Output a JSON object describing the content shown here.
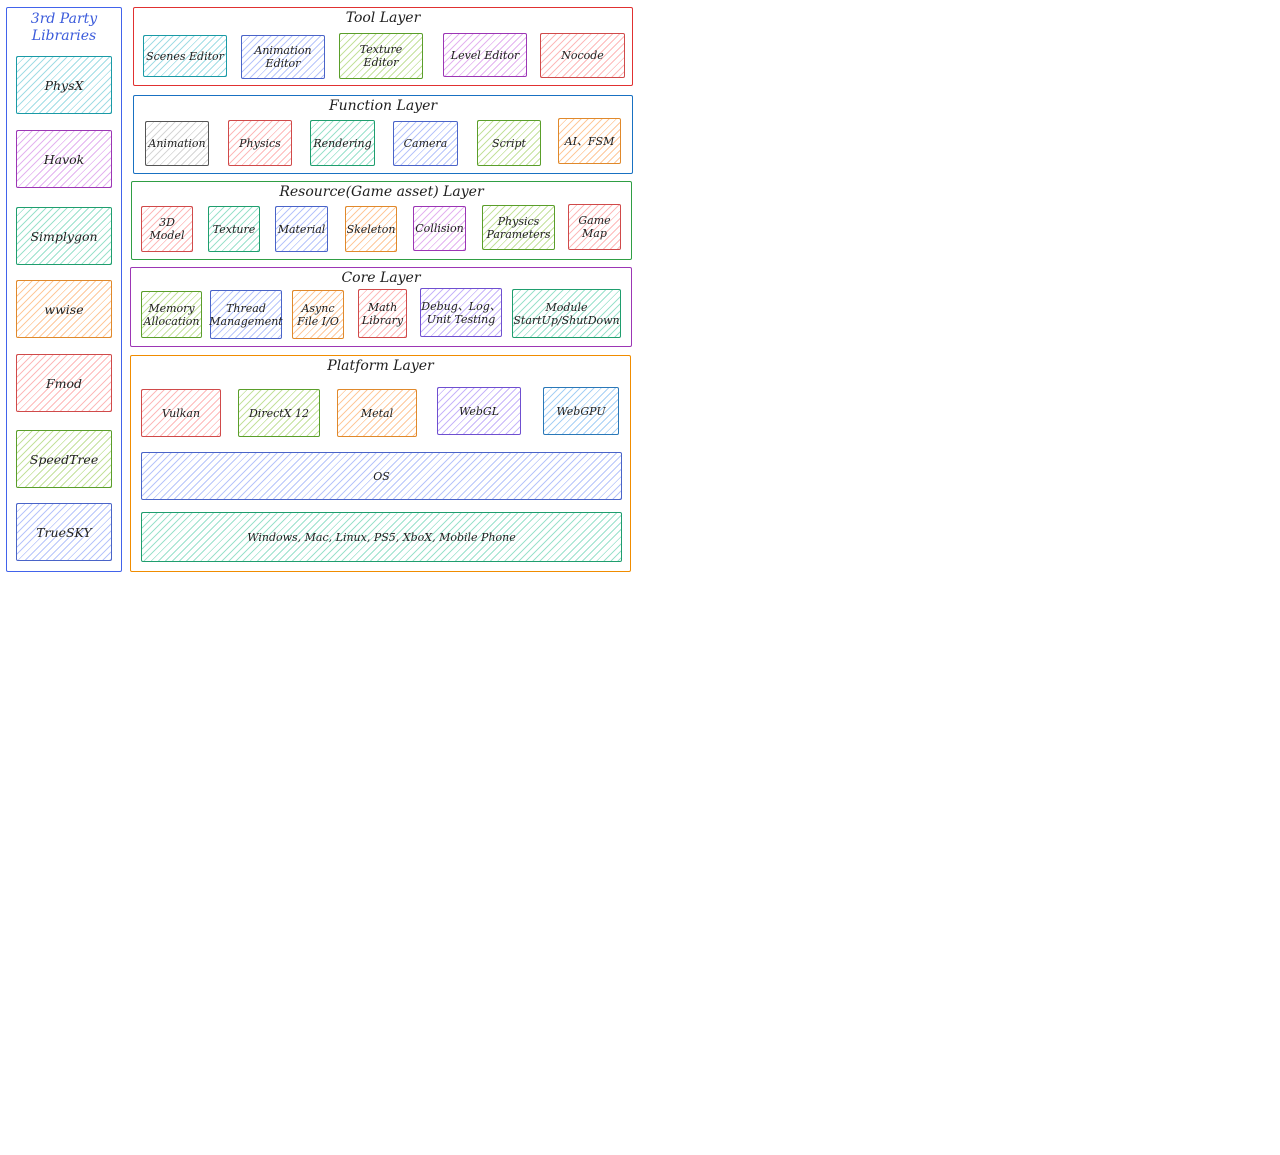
{
  "third_party": {
    "title": "3rd Party\nLibraries",
    "items": [
      "PhysX",
      "Havok",
      "Simplygon",
      "wwise",
      "Fmod",
      "SpeedTree",
      "TrueSKY"
    ]
  },
  "tool_layer": {
    "title": "Tool Layer",
    "items": [
      "Scenes Editor",
      "Animation\nEditor",
      "Texture\nEditor",
      "Level Editor",
      "Nocode"
    ]
  },
  "function_layer": {
    "title": "Function Layer",
    "items": [
      "Animation",
      "Physics",
      "Rendering",
      "Camera",
      "Script",
      "AI、FSM"
    ]
  },
  "resource_layer": {
    "title": "Resource(Game asset) Layer",
    "items": [
      "3D\nModel",
      "Texture",
      "Material",
      "Skeleton",
      "Collision",
      "Physics\nParameters",
      "Game\nMap"
    ]
  },
  "core_layer": {
    "title": "Core Layer",
    "items": [
      "Memory\nAllocation",
      "Thread\nManagement",
      "Async\nFile I/O",
      "Math\nLibrary",
      "Debug、Log、\nUnit Testing",
      "Module\nStartUp/ShutDown"
    ]
  },
  "platform_layer": {
    "title": "Platform Layer",
    "apis": [
      "Vulkan",
      "DirectX 12",
      "Metal",
      "WebGL",
      "WebGPU"
    ],
    "os": "OS",
    "platforms": "Windows, Mac, Linux, PS5, XboX, Mobile Phone"
  },
  "colors": {
    "tool_frame": "#e03131",
    "function_frame": "#1971c2",
    "resource_frame": "#2f9e44",
    "core_frame": "#9c36b5",
    "platform_frame": "#f08c00",
    "third_party_frame": "#4263eb",
    "third_party_title": "#3b5bdb"
  }
}
